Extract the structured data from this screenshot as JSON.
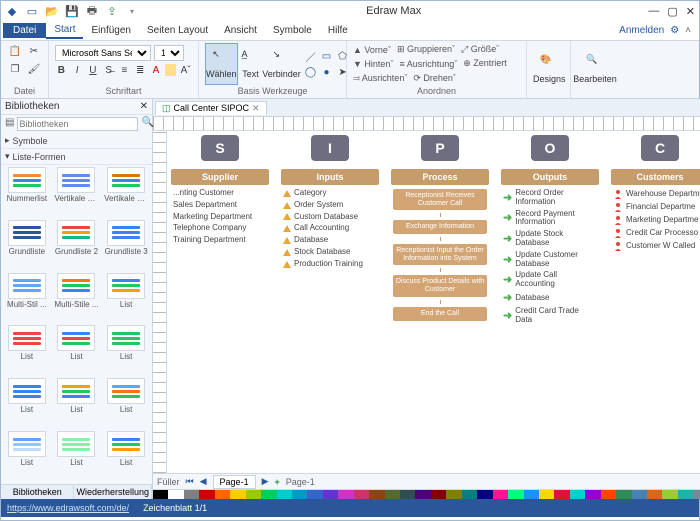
{
  "app": {
    "title": "Edraw Max"
  },
  "qat": [
    "new",
    "open",
    "save",
    "print",
    "export",
    "undo",
    "redo"
  ],
  "menu": {
    "file": "Datei",
    "items": [
      "Start",
      "Einfügen",
      "Seiten Layout",
      "Ansicht",
      "Symbole",
      "Hilfe"
    ],
    "active": "Start",
    "login": "Anmelden"
  },
  "ribbon": {
    "font_name": "Microsoft Sans Serif",
    "font_size": "10",
    "groups": {
      "datei": "Datei",
      "schriftart": "Schriftart",
      "basis": "Basis Werkzeuge",
      "anordnen": "Anordnen",
      "designs": "Designs",
      "bearbeiten": "Bearbeiten"
    },
    "waehlen": "Wählen",
    "text": "Text",
    "verbinder": "Verbinder",
    "arrange": {
      "vorne": "Vorne",
      "hinten": "Hinten",
      "ausrichten": "Ausrichten",
      "gruppieren": "Gruppieren",
      "ausrichtung": "Ausrichtung",
      "drehen": "Drehen",
      "groesse": "Größe",
      "zentriert": "Zentriert"
    }
  },
  "sidebar": {
    "title": "Bibliotheken",
    "symbole": "Symbole",
    "liste_formen": "Liste-Formen",
    "tabs": [
      "Bibliotheken",
      "Wiederherstellung"
    ],
    "shapes": [
      {
        "label": "Nummerlist",
        "colors": [
          "#f28b3b",
          "#3b82f6",
          "#22c55e"
        ]
      },
      {
        "label": "Vertikale Li...",
        "colors": [
          "#5b8def",
          "#5b8def",
          "#5b8def"
        ]
      },
      {
        "label": "Vertikale Li...",
        "colors": [
          "#d97706",
          "#3b82f6",
          "#22c55e"
        ]
      },
      {
        "label": "Grundliste",
        "colors": [
          "#2a579a",
          "#2a579a",
          "#2a579a"
        ]
      },
      {
        "label": "Grundliste 2",
        "colors": [
          "#ef4444",
          "#f59e0b",
          "#10b981"
        ]
      },
      {
        "label": "Grundliste 3",
        "colors": [
          "#3b82f6",
          "#3b82f6",
          "#3b82f6"
        ]
      },
      {
        "label": "Multi-Stil ...",
        "colors": [
          "#60a5fa",
          "#60a5fa",
          "#60a5fa"
        ]
      },
      {
        "label": "Multi-Stile ...",
        "colors": [
          "#f97316",
          "#22c55e",
          "#3b82f6"
        ]
      },
      {
        "label": "List",
        "colors": [
          "#3b82f6",
          "#22c55e",
          "#f59e0b"
        ]
      },
      {
        "label": "List",
        "colors": [
          "#ef4444",
          "#ef4444",
          "#ef4444"
        ]
      },
      {
        "label": "List",
        "colors": [
          "#3b82f6",
          "#ef4444",
          "#22c55e"
        ]
      },
      {
        "label": "List",
        "colors": [
          "#22c55e",
          "#22c55e",
          "#22c55e"
        ]
      },
      {
        "label": "List",
        "colors": [
          "#3b82f6",
          "#3b82f6",
          "#3b82f6"
        ]
      },
      {
        "label": "List",
        "colors": [
          "#f59e0b",
          "#22c55e",
          "#3b82f6"
        ]
      },
      {
        "label": "List",
        "colors": [
          "#60a5fa",
          "#f97316",
          "#22c55e"
        ]
      },
      {
        "label": "List",
        "colors": [
          "#60a5fa",
          "#93c5fd",
          "#bfdbfe"
        ]
      },
      {
        "label": "List",
        "colors": [
          "#86efac",
          "#86efac",
          "#86efac"
        ]
      },
      {
        "label": "List",
        "colors": [
          "#3b82f6",
          "#22c55e",
          "#f59e0b"
        ]
      }
    ]
  },
  "doc": {
    "tab": "Call Center SIPOC"
  },
  "sipoc": {
    "letter_bg": "#6e6e80",
    "header_bg": "#c69c6d",
    "process_box_bg": "#d4a574",
    "columns": [
      {
        "letter": "S",
        "header": "Supplier",
        "bullet": "text",
        "items": [
          "...nting Customer",
          "Sales Department",
          "Marketing Department",
          "Telephone Company",
          "Training Department"
        ]
      },
      {
        "letter": "I",
        "header": "Inputs",
        "bullet": "triangle",
        "items": [
          "Category",
          "Order System",
          "Custom Database",
          "Call Accounting",
          "Database",
          "Stock Database",
          "Production Training"
        ]
      },
      {
        "letter": "P",
        "header": "Process",
        "bullet": "process",
        "items": [
          "Receptionist Receives Customer Call",
          "Exchange Information",
          "Receptionist Input the Order Information into System",
          "Discuss Product Details with Customer",
          "End the Call"
        ]
      },
      {
        "letter": "O",
        "header": "Outputs",
        "bullet": "arrow",
        "items": [
          "Record Order Information",
          "Record Payment Information",
          "Update Stock Database",
          "Update Customer Database",
          "Update Call Accounting",
          "Database",
          "Credit Card Trade Data"
        ]
      },
      {
        "letter": "C",
        "header": "Customers",
        "bullet": "person",
        "items": [
          "Warehouse Departme",
          "Financial Departme",
          "Marketing Departme",
          "Credit Car Processo",
          "Customer W Called"
        ]
      }
    ]
  },
  "pages": {
    "fueller": "Füller",
    "label": "Page-1",
    "plus": "+"
  },
  "color_palette": [
    "#000",
    "#fff",
    "#7f7f7f",
    "#c00",
    "#f60",
    "#fc0",
    "#9c0",
    "#0c6",
    "#0cc",
    "#09c",
    "#36c",
    "#63c",
    "#c3c",
    "#c36",
    "#8b4513",
    "#556b2f",
    "#2f4f4f",
    "#4b0082",
    "#800000",
    "#808000",
    "#008080",
    "#000080",
    "#ff1493",
    "#00ff7f",
    "#1e90ff",
    "#ffd700",
    "#dc143c",
    "#00ced1",
    "#9400d3",
    "#ff4500",
    "#2e8b57",
    "#4682b4",
    "#d2691e",
    "#9acd32",
    "#20b2aa",
    "#778899"
  ],
  "status": {
    "url": "https://www.edrawsoft.com/de/",
    "sheet": "Zeichenblatt 1/1"
  }
}
